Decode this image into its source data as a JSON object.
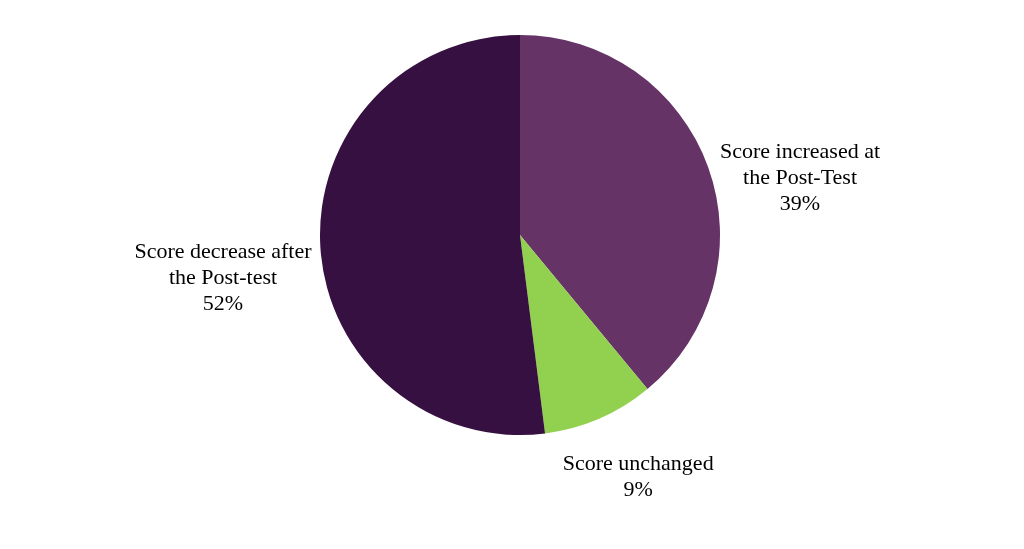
{
  "chart_data": {
    "type": "pie",
    "categories": [
      "Score increased at the Post-Test",
      "Score unchanged",
      "Score decrease after the Post-test"
    ],
    "values": [
      39,
      9,
      52
    ],
    "value_labels": [
      "39%",
      "9%",
      "52%"
    ],
    "colors": [
      "#663366",
      "#92d050",
      "#361040"
    ]
  }
}
